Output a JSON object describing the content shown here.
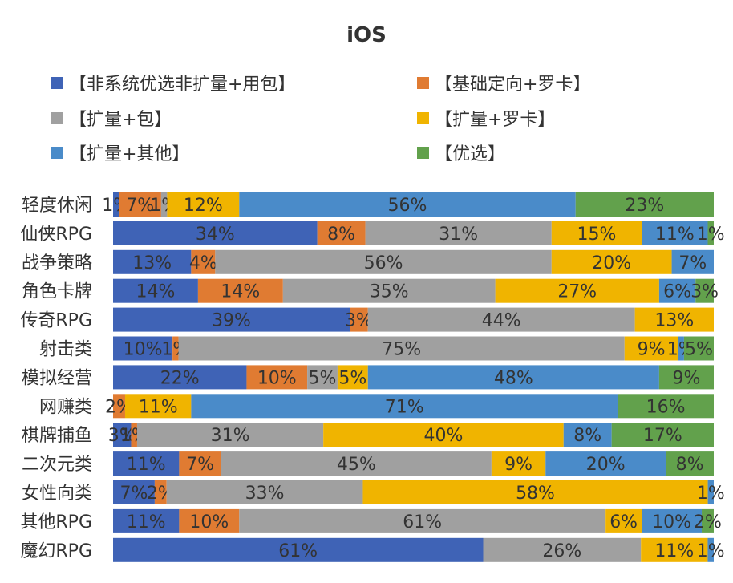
{
  "chart_data": {
    "type": "bar",
    "orientation": "horizontal",
    "stacked": "percent",
    "title": "iOS",
    "legend_position": "top",
    "grid": false,
    "xlim": [
      0,
      100
    ],
    "categories": [
      "轻度休闲",
      "仙侠RPG",
      "战争策略",
      "角色卡牌",
      "传奇RPG",
      "射击类",
      "模拟经营",
      "网赚类",
      "棋牌捕鱼",
      "二次元类",
      "女性向类",
      "其他RPG",
      "魔幻RPG"
    ],
    "series": [
      {
        "name": "【非系统优选非扩量+用包】",
        "color": "#3F63B6",
        "values": [
          1,
          34,
          13,
          14,
          39,
          10,
          22,
          0,
          3,
          11,
          7,
          11,
          61
        ],
        "labels": [
          "1%",
          "34%",
          "13%",
          "14%",
          "39%",
          "10%",
          "22%",
          "",
          "3%",
          "11%",
          "7%",
          "11%",
          "61%"
        ]
      },
      {
        "name": "【基础定向+罗卡】",
        "color": "#E07B32",
        "values": [
          7,
          8,
          4,
          14,
          3,
          1,
          10,
          2,
          1,
          7,
          2,
          10,
          0
        ],
        "labels": [
          "7%",
          "8%",
          "4%",
          "14%",
          "3%",
          "1%",
          "10%",
          "2%",
          "1%",
          "7%",
          "2%",
          "10%",
          ""
        ]
      },
      {
        "name": "【扩量+包】",
        "color": "#A0A0A0",
        "values": [
          1,
          31,
          56,
          35,
          44,
          75,
          5,
          0,
          31,
          45,
          33,
          61,
          26
        ],
        "labels": [
          "1%",
          "31%",
          "56%",
          "35%",
          "44%",
          "75%",
          "5%",
          "",
          "31%",
          "45%",
          "33%",
          "61%",
          "26%"
        ]
      },
      {
        "name": "【扩量+罗卡】",
        "color": "#F0B400",
        "values": [
          12,
          15,
          20,
          27,
          13,
          9,
          5,
          11,
          40,
          9,
          58,
          6,
          11
        ],
        "labels": [
          "12%",
          "15%",
          "20%",
          "27%",
          "13%",
          "9%",
          "5%",
          "11%",
          "40%",
          "9%",
          "58%",
          "6%",
          "11%"
        ]
      },
      {
        "name": "【扩量+其他】",
        "color": "#4A8BC9",
        "values": [
          56,
          11,
          7,
          6,
          0,
          1,
          48,
          71,
          8,
          20,
          1,
          10,
          1
        ],
        "labels": [
          "56%",
          "11%",
          "7%",
          "6%",
          "",
          "1%",
          "48%",
          "71%",
          "8%",
          "20%",
          "1%",
          "10%",
          "1%"
        ]
      },
      {
        "name": "【优选】",
        "color": "#62A14C",
        "values": [
          23,
          1,
          0,
          3,
          0,
          5,
          9,
          16,
          17,
          8,
          0,
          2,
          0
        ],
        "labels": [
          "23%",
          "1%",
          "",
          "3%",
          "",
          "5%",
          "9%",
          "16%",
          "17%",
          "8%",
          "",
          "2%",
          ""
        ]
      }
    ]
  }
}
